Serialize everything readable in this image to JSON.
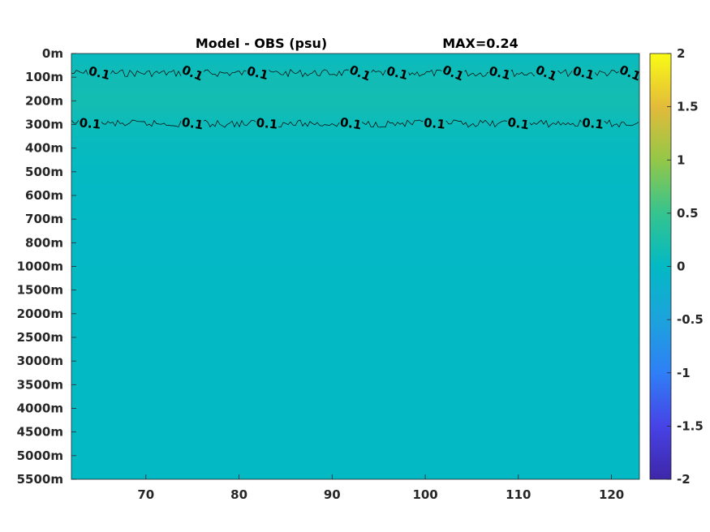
{
  "chart_data": {
    "type": "heatmap",
    "title": "Model - OBS (psu)",
    "max_label": "MAX=0.24",
    "xlabel": "",
    "ylabel": "",
    "xlim": [
      62,
      123
    ],
    "x_ticks": [
      70,
      80,
      90,
      100,
      110,
      120
    ],
    "y_tick_labels": [
      "0m",
      "100m",
      "200m",
      "300m",
      "400m",
      "500m",
      "600m",
      "700m",
      "800m",
      "1000m",
      "1500m",
      "2000m",
      "2500m",
      "3000m",
      "3500m",
      "4000m",
      "4500m",
      "5000m",
      "5500m"
    ],
    "colorbar": {
      "clim": [
        -2,
        2
      ],
      "ticks": [
        2,
        1.5,
        1,
        0.5,
        0,
        -0.5,
        -1,
        -1.5,
        -2
      ],
      "tick_labels": [
        "2",
        "1.5",
        "1",
        "0.5",
        "0",
        "-0.5",
        "-1",
        "-1.5",
        "-2"
      ]
    },
    "depth_profile": [
      {
        "depth": "0m",
        "value": 0.05
      },
      {
        "depth": "100m",
        "value": 0.14
      },
      {
        "depth": "200m",
        "value": 0.18
      },
      {
        "depth": "300m",
        "value": 0.09
      },
      {
        "depth": "400m",
        "value": 0.04
      },
      {
        "depth": "500m",
        "value": 0.02
      },
      {
        "depth": "600m",
        "value": 0.01
      },
      {
        "depth": "700m",
        "value": -0.01
      },
      {
        "depth": "800m",
        "value": -0.03
      },
      {
        "depth": "1000m",
        "value": -0.01
      },
      {
        "depth": "1500m",
        "value": 0.0
      },
      {
        "depth": "2000m",
        "value": 0.0
      },
      {
        "depth": "2500m",
        "value": 0.0
      },
      {
        "depth": "3000m",
        "value": 0.0
      },
      {
        "depth": "3500m",
        "value": 0.0
      },
      {
        "depth": "4000m",
        "value": 0.0
      },
      {
        "depth": "4500m",
        "value": 0.0
      },
      {
        "depth": "5000m",
        "value": 0.0
      },
      {
        "depth": "5500m",
        "value": 0.0
      }
    ],
    "contours": [
      {
        "level": 0.1,
        "label": "0.1",
        "depth": "100m",
        "label_x": [
          65,
          75,
          82,
          93,
          97,
          103,
          108,
          113,
          117,
          122
        ]
      },
      {
        "level": 0.1,
        "label": "0.1",
        "depth": "300m",
        "label_x": [
          64,
          75,
          83,
          92,
          101,
          110,
          118
        ]
      }
    ],
    "grid": false,
    "colormap": "parula"
  }
}
